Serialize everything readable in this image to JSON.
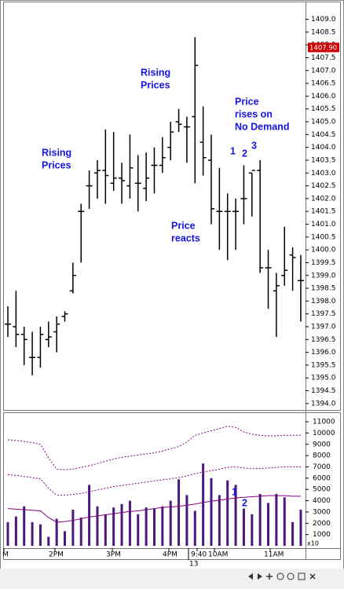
{
  "chart_data": [
    {
      "type": "ohlc",
      "open": [
        1397.1,
        1397.0,
        1396.7,
        1395.8,
        1395.8,
        1396.5,
        1396.8,
        1397.4,
        1398.4,
        1401.5,
        1402.5,
        1403.0,
        1403.1,
        1402.6,
        1402.8,
        1402.5,
        1402.6,
        1402.4,
        1403.3,
        1403.3,
        1404.0,
        1405.0,
        1404.8,
        1405.2,
        1404.2,
        1403.5,
        1401.5,
        1401.5,
        1401.5,
        1402.0,
        1403.0,
        1403.1,
        1399.3,
        1398.4,
        1399.0,
        1399.8,
        1398.8
      ],
      "high": [
        1397.8,
        1398.4,
        1397.0,
        1396.8,
        1397.0,
        1397.2,
        1397.4,
        1397.6,
        1399.5,
        1401.8,
        1403.1,
        1403.5,
        1404.7,
        1404.6,
        1403.4,
        1404.5,
        1403.7,
        1403.8,
        1404.0,
        1404.4,
        1405.0,
        1405.5,
        1405.2,
        1408.3,
        1405.6,
        1404.5,
        1403.2,
        1402.2,
        1402.0,
        1403.3,
        1403.0,
        1403.5,
        1400.0,
        1399.1,
        1400.9,
        1400.1,
        1399.8
      ],
      "low": [
        1396.6,
        1396.2,
        1395.5,
        1395.1,
        1395.4,
        1396.2,
        1396.0,
        1397.2,
        1398.3,
        1399.5,
        1401.6,
        1402.0,
        1401.8,
        1402.3,
        1401.8,
        1402.0,
        1401.5,
        1401.9,
        1402.2,
        1403.0,
        1403.5,
        1404.6,
        1403.4,
        1402.6,
        1402.9,
        1401.0,
        1400.0,
        1399.6,
        1400.0,
        1401.0,
        1401.3,
        1399.1,
        1397.7,
        1396.6,
        1398.6,
        1398.4,
        1397.2
      ],
      "close": [
        1397.1,
        1396.7,
        1396.5,
        1395.8,
        1396.7,
        1396.6,
        1397.1,
        1397.5,
        1399.0,
        1401.5,
        1402.5,
        1403.1,
        1402.9,
        1402.8,
        1402.7,
        1403.2,
        1402.6,
        1402.8,
        1403.3,
        1403.6,
        1404.6,
        1404.9,
        1404.8,
        1407.2,
        1403.6,
        1401.6,
        1401.5,
        1401.5,
        1401.5,
        1402.0,
        1403.1,
        1399.3,
        1399.3,
        1398.6,
        1399.2,
        1399.7,
        1398.8
      ],
      "color": "#000000",
      "ylim": [
        1393.75,
        1409.6
      ],
      "yticks": [
        {
          "value": 1394,
          "label": "1394.0"
        },
        {
          "value": 1394.5,
          "label": "1394.5"
        },
        {
          "value": 1395,
          "label": "1395.0"
        },
        {
          "value": 1395.5,
          "label": "1395.5"
        },
        {
          "value": 1396,
          "label": "1396.0"
        },
        {
          "value": 1396.5,
          "label": "1396.5"
        },
        {
          "value": 1397,
          "label": "1397.0"
        },
        {
          "value": 1397.5,
          "label": "1397.5"
        },
        {
          "value": 1398,
          "label": "1398.0"
        },
        {
          "value": 1398.5,
          "label": "1398.5"
        },
        {
          "value": 1399,
          "label": "1399.0"
        },
        {
          "value": 1399.5,
          "label": "1399.5"
        },
        {
          "value": 1400,
          "label": "1400.0"
        },
        {
          "value": 1400.5,
          "label": "1400.5"
        },
        {
          "value": 1401,
          "label": "1401.0"
        },
        {
          "value": 1401.5,
          "label": "1401.5"
        },
        {
          "value": 1402,
          "label": "1402.0"
        },
        {
          "value": 1402.5,
          "label": "1402.5"
        },
        {
          "value": 1403,
          "label": "1403.0"
        },
        {
          "value": 1403.5,
          "label": "1403.5"
        },
        {
          "value": 1404,
          "label": "1404.0"
        },
        {
          "value": 1404.5,
          "label": "1404.5"
        },
        {
          "value": 1405,
          "label": "1405.0"
        },
        {
          "value": 1405.5,
          "label": "1405.5"
        },
        {
          "value": 1406,
          "label": "1406.0"
        },
        {
          "value": 1406.5,
          "label": "1406.5"
        },
        {
          "value": 1407,
          "label": "1407.0"
        },
        {
          "value": 1407.5,
          "label": "1407.5"
        },
        {
          "value": 1408,
          "label": "1408.0"
        },
        {
          "value": 1408.5,
          "label": "1408.5"
        },
        {
          "value": 1409,
          "label": "1409.0"
        }
      ],
      "last_price": {
        "value": 1407.9,
        "label": "1407.90"
      },
      "last_price_color": "#cc0000",
      "annotations": [
        {
          "lines": [
            "Rising",
            "Prices"
          ]
        },
        {
          "lines": [
            "Rising",
            "Prices"
          ]
        },
        {
          "lines": [
            "Price",
            "reacts"
          ]
        },
        {
          "lines": [
            "Price",
            "rises on",
            "No Demand"
          ]
        },
        {
          "lines": [
            "1"
          ]
        },
        {
          "lines": [
            "2"
          ]
        },
        {
          "lines": [
            "3"
          ]
        }
      ]
    },
    {
      "type": "bar",
      "values": [
        2100,
        2600,
        3500,
        2100,
        1900,
        800,
        2400,
        1300,
        3200,
        2500,
        5400,
        3500,
        2800,
        3400,
        3700,
        4000,
        2800,
        3400,
        3300,
        3500,
        4000,
        5900,
        4500,
        3100,
        7300,
        6000,
        4500,
        5800,
        5400,
        3300,
        2800,
        4600,
        3800,
        4600,
        4300,
        2100,
        3200
      ],
      "color": "#4b1880",
      "lines": [
        {
          "color": "#800080",
          "dashed": false,
          "values": [
            3300,
            3250,
            3200,
            3150,
            3100,
            2500,
            2100,
            2150,
            2250,
            2400,
            2550,
            2650,
            2750,
            2850,
            2950,
            3050,
            3100,
            3200,
            3300,
            3400,
            3450,
            3500,
            3600,
            3700,
            3850,
            3950,
            4050,
            4150,
            4250,
            4300,
            4350,
            4400,
            4450,
            4450,
            4450,
            4400,
            4400
          ]
        },
        {
          "color": "#800080",
          "dashed": true,
          "values": [
            6300,
            6250,
            6150,
            6050,
            5950,
            5100,
            4500,
            4500,
            4550,
            4650,
            4800,
            4950,
            5100,
            5250,
            5350,
            5450,
            5550,
            5650,
            5750,
            5850,
            5950,
            6050,
            6200,
            6400,
            6550,
            6650,
            6800,
            6950,
            7000,
            6900,
            6850,
            6850,
            6900,
            6950,
            7000,
            7000,
            7000
          ]
        },
        {
          "color": "#800080",
          "dashed": true,
          "values": [
            9400,
            9350,
            9250,
            9150,
            9000,
            7800,
            6800,
            6750,
            6800,
            6950,
            7100,
            7300,
            7500,
            7700,
            7850,
            7950,
            8050,
            8150,
            8250,
            8400,
            8600,
            8800,
            9200,
            9800,
            10000,
            10200,
            10400,
            10600,
            10500,
            10100,
            9900,
            9800,
            9750,
            9750,
            9800,
            9800,
            9800
          ]
        }
      ],
      "ylim": [
        0,
        11700
      ],
      "yticks": [
        1000,
        2000,
        3000,
        4000,
        5000,
        6000,
        7000,
        8000,
        9000,
        10000,
        11000
      ],
      "multiplier": "x10",
      "x_labels": [
        "M",
        "2PM",
        "3PM",
        "4PM",
        "9:40",
        "10AM",
        "11AM"
      ],
      "date_label": "13",
      "annotations": [
        {
          "lines": [
            "1"
          ]
        },
        {
          "lines": [
            "2"
          ]
        }
      ]
    }
  ]
}
